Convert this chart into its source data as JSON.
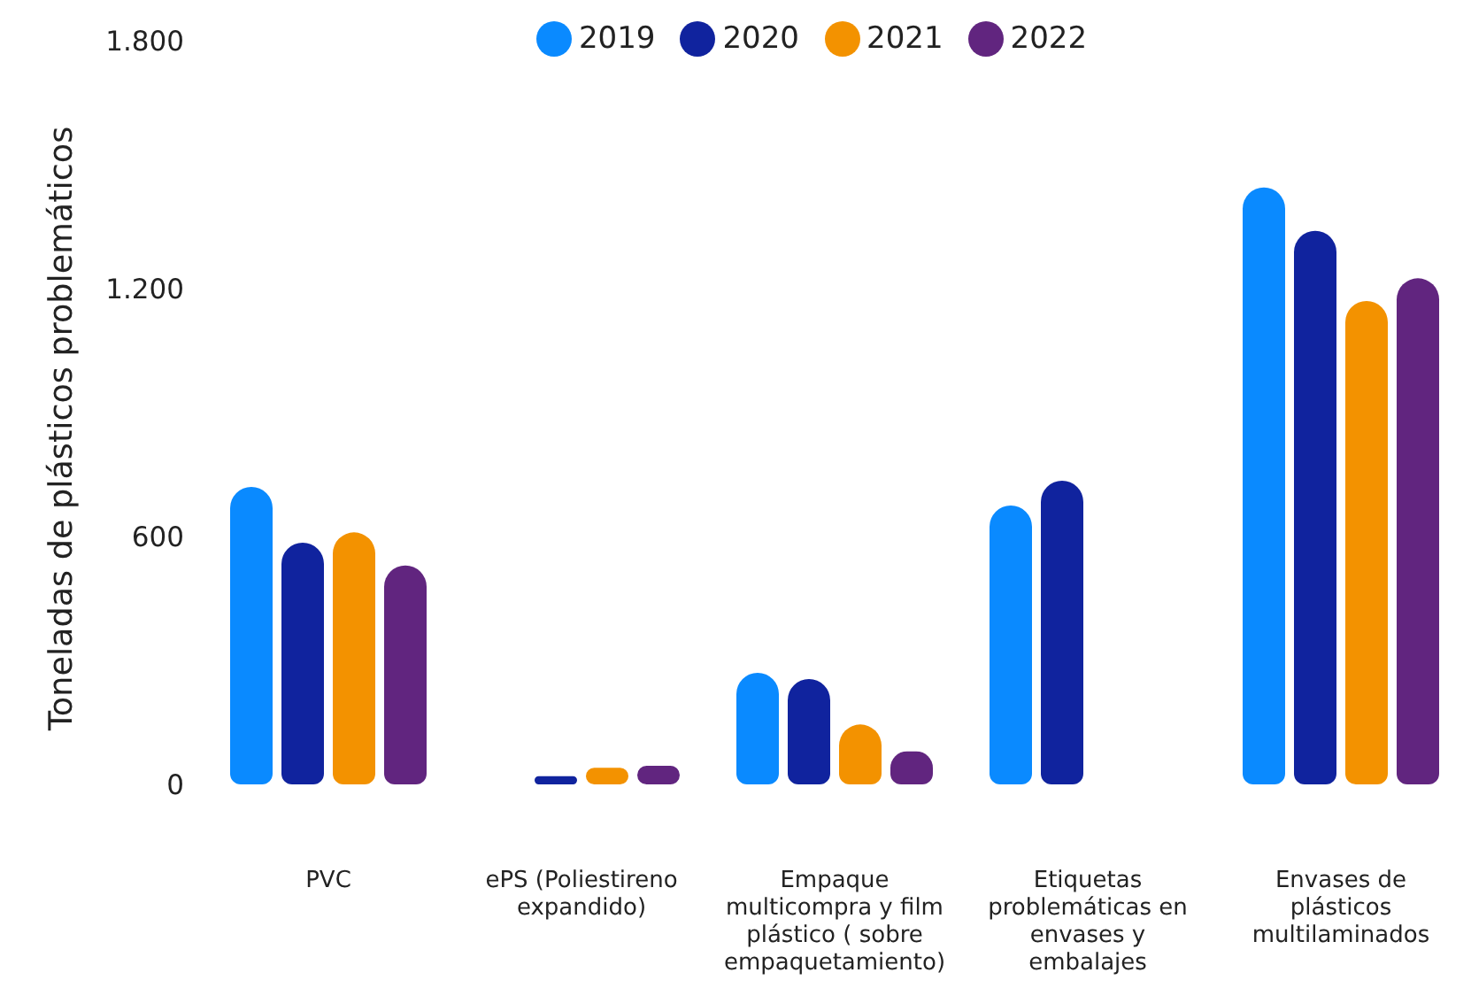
{
  "chart_data": {
    "type": "bar",
    "ylabel": "Toneladas de plásticos problemáticos",
    "categories": [
      "PVC",
      "ePS (Poliestireno expandido)",
      "Empaque multicompra y film plástico ( sobre empaquetamiento)",
      "Etiquetas problemáticas en envases y embalajes",
      "Envases de plásticos multilaminados"
    ],
    "series": [
      {
        "name": "2019",
        "color": "#0a8aff",
        "values": [
          720,
          null,
          270,
          675,
          1445
        ]
      },
      {
        "name": "2020",
        "color": "#10239e",
        "values": [
          585,
          20,
          255,
          735,
          1340
        ]
      },
      {
        "name": "2021",
        "color": "#f39200",
        "values": [
          610,
          40,
          145,
          null,
          1170
        ]
      },
      {
        "name": "2022",
        "color": "#61257f",
        "values": [
          530,
          45,
          80,
          null,
          1225
        ]
      }
    ],
    "ylim": [
      0,
      1800
    ],
    "yticks": [
      0,
      600,
      {
        "value": 1200,
        "label": "1.200"
      },
      {
        "value": 1800,
        "label": "1.800"
      }
    ],
    "legend": "top"
  }
}
